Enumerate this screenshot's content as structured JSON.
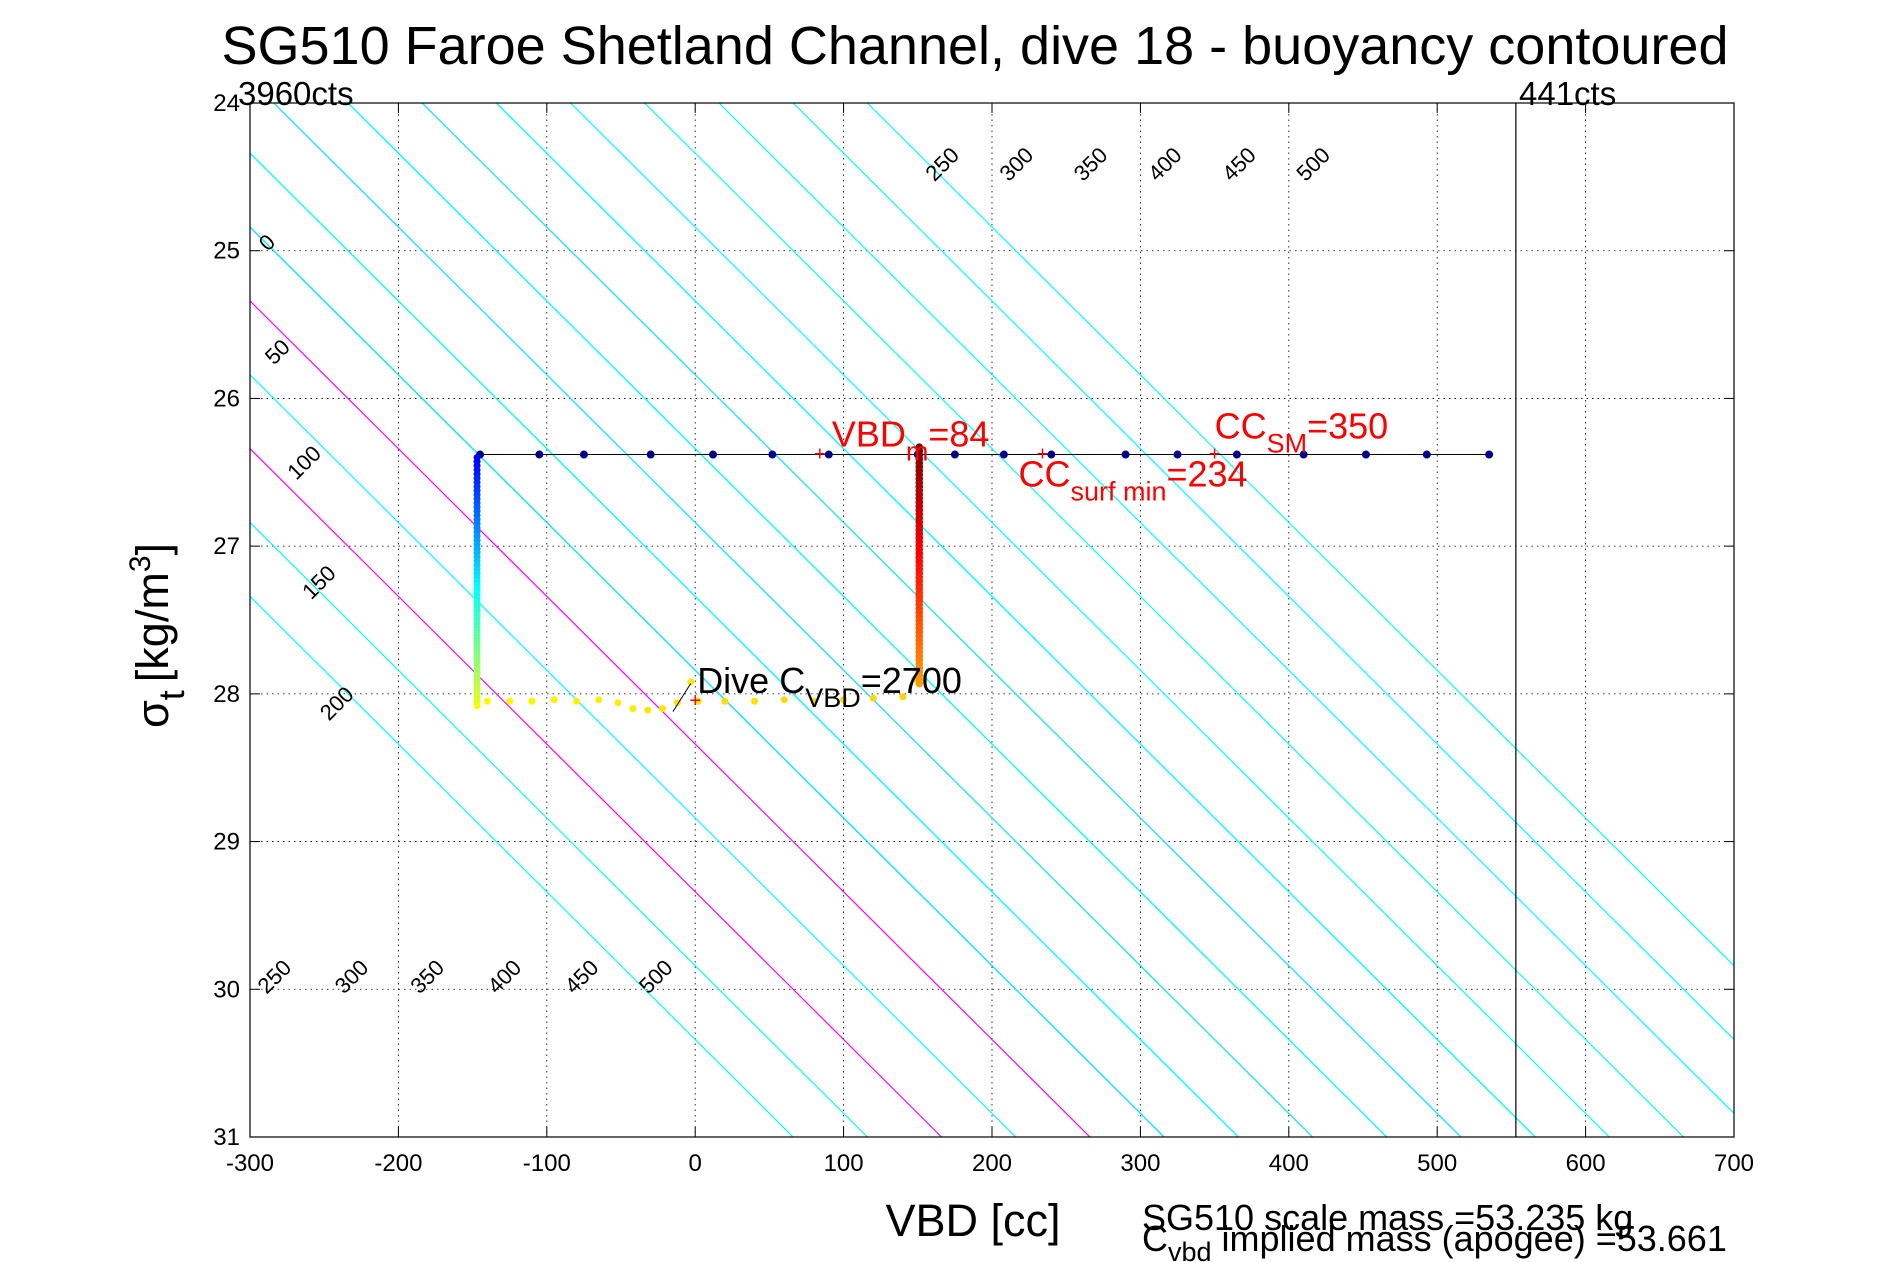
{
  "chart_data": {
    "type": "scatter",
    "title": "SG510 Faroe Shetland Channel, dive 18 - buoyancy contoured",
    "xlabel": "VBD [cc]",
    "ylabel_main": "σ",
    "ylabel_sub": "t",
    "ylabel_units": "[kg/m",
    "ylabel_sup": "3",
    "ylabel_close": "]",
    "xlim": [
      -300,
      700
    ],
    "ylim": [
      31,
      24
    ],
    "y_reversed": true,
    "grid": true,
    "x_ticks": [
      -300,
      -200,
      -100,
      0,
      100,
      200,
      300,
      400,
      500,
      600,
      700
    ],
    "x_tick_labels": [
      "-300",
      "-200",
      "-100",
      "0",
      "100",
      "200",
      "300",
      "400",
      "500",
      "600",
      "700"
    ],
    "y_ticks": [
      24,
      25,
      26,
      27,
      28,
      29,
      30,
      31
    ],
    "y_tick_labels": [
      "24",
      "25",
      "26",
      "27",
      "28",
      "29",
      "30",
      "31"
    ],
    "top_left_label": "3960cts",
    "top_right_label": "441cts",
    "vertical_limit_x": 553,
    "contour_slope_cc_per_sigma": 100,
    "contour_base_sigma": 26.4,
    "contours": [
      {
        "buoyancy": 0,
        "x0": -144,
        "color": "#0000ff",
        "label": "0"
      },
      {
        "buoyancy": 50,
        "x0": -94,
        "color": "#00ffff",
        "label": "50"
      },
      {
        "buoyancy": 100,
        "x0": -44,
        "color": "#ff00ff",
        "label": "100"
      },
      {
        "buoyancy": 150,
        "x0": 6,
        "color": "#00ffff",
        "label": "150"
      },
      {
        "buoyancy": 200,
        "x0": 56,
        "color": "#ff00ff",
        "label": "200"
      },
      {
        "buoyancy": 250,
        "x0": 106,
        "color": "#00ffff",
        "label": "250"
      },
      {
        "buoyancy": 300,
        "x0": 156,
        "color": "#00ffff",
        "label": "300"
      },
      {
        "buoyancy": 350,
        "x0": 206,
        "color": "#00ffff",
        "label": "350"
      },
      {
        "buoyancy": 400,
        "x0": 256,
        "color": "#00ffff",
        "label": "400"
      },
      {
        "buoyancy": 450,
        "x0": 306,
        "color": "#00ffff",
        "label": "450"
      },
      {
        "buoyancy": 500,
        "x0": 356,
        "color": "#00ffff",
        "label": "500"
      }
    ],
    "contour_labels_top": [
      {
        "label": "250",
        "x": 170,
        "y": 24.45
      },
      {
        "label": "300",
        "x": 220,
        "y": 24.45
      },
      {
        "label": "350",
        "x": 270,
        "y": 24.45
      },
      {
        "label": "400",
        "x": 320,
        "y": 24.45
      },
      {
        "label": "450",
        "x": 370,
        "y": 24.45
      },
      {
        "label": "500",
        "x": 420,
        "y": 24.45
      }
    ],
    "contour_labels_left": [
      {
        "label": "0",
        "x": -285,
        "y": 24.98
      },
      {
        "label": "50",
        "x": -278,
        "y": 25.72
      },
      {
        "label": "100",
        "x": -260,
        "y": 26.47
      },
      {
        "label": "150",
        "x": -250,
        "y": 27.28
      },
      {
        "label": "200",
        "x": -238,
        "y": 28.1
      }
    ],
    "contour_labels_bottom": [
      {
        "label": "250",
        "x": -280,
        "y": 29.95
      },
      {
        "label": "300",
        "x": -228,
        "y": 29.95
      },
      {
        "label": "350",
        "x": -177,
        "y": 29.95
      },
      {
        "label": "400",
        "x": -125,
        "y": 29.95
      },
      {
        "label": "450",
        "x": -73,
        "y": 29.95
      },
      {
        "label": "500",
        "x": -23,
        "y": 29.95
      }
    ],
    "horizontal_series": {
      "name": "surface",
      "y": 26.38,
      "x": [
        -145,
        -105,
        -75,
        -30,
        12,
        52,
        90,
        150,
        175,
        208,
        240,
        290,
        325,
        365,
        410,
        452,
        493,
        535
      ],
      "color": "#00008b"
    },
    "dive_series": {
      "left_vertical_x": -147,
      "right_vertical_x": 151,
      "top_y": 26.4,
      "bottom_y": 28.08
    },
    "annotations": [
      {
        "key": "vbd",
        "main": "VBD",
        "sub": "m",
        "tail": "=84",
        "x": 84,
        "y": 26.38,
        "color": "#ff0000"
      },
      {
        "key": "ccsm",
        "main": "CC",
        "sub": "SM",
        "tail": "=350",
        "x": 350,
        "y": 26.38,
        "color": "#ff0000"
      },
      {
        "key": "ccsurf",
        "main": "CC",
        "sub": "surf min",
        "tail": "=234",
        "x": 234,
        "y": 26.38,
        "color": "#ff0000"
      },
      {
        "key": "cvbd",
        "main": "Dive C",
        "sub": "VBD",
        "tail": "=2700",
        "x": 0,
        "y": 28.05,
        "color": "#000000"
      }
    ],
    "footer_scale_mass": "SG510 scale mass =53.235 kg",
    "footer_implied_main": "C",
    "footer_implied_sub": "vbd",
    "footer_implied_tail": " implied mass (apogee) =53.661"
  }
}
